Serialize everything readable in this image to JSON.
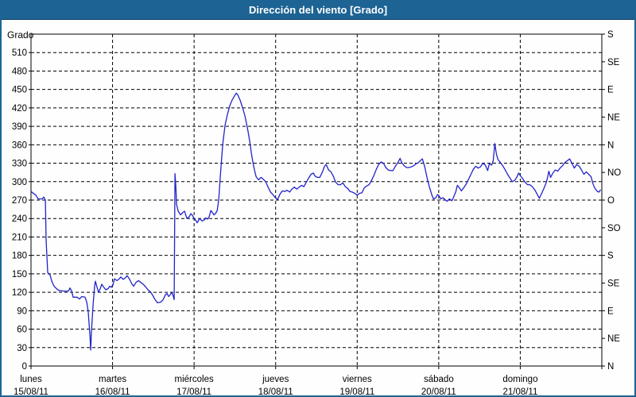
{
  "title": "Dirección del viento [Grado]",
  "colors": {
    "titlebar": "#1D6394",
    "page_border": "#1D6394",
    "line": "#2323CC",
    "grid": "#000000",
    "frame": "#000000",
    "text": "#000000",
    "title_text": "#FFFFFF",
    "background": "#FDFEFD"
  },
  "chart_data": {
    "type": "line",
    "title": "Dirección del viento [Grado]",
    "ylabel_left": "Grado",
    "ylim": [
      0,
      540
    ],
    "grid": true,
    "y_left_ticks": [
      0,
      30,
      60,
      90,
      120,
      150,
      180,
      210,
      240,
      270,
      300,
      330,
      360,
      390,
      420,
      450,
      480,
      510
    ],
    "y_right_ticks": [
      [
        "S",
        540
      ],
      [
        "SE",
        495
      ],
      [
        "E",
        450
      ],
      [
        "NE",
        405
      ],
      [
        "N",
        360
      ],
      [
        "NO",
        315
      ],
      [
        "O",
        270
      ],
      [
        "SO",
        225
      ],
      [
        "S",
        180
      ],
      [
        "SE",
        135
      ],
      [
        "E",
        90
      ],
      [
        "NE",
        45
      ],
      [
        "N",
        0
      ]
    ],
    "x_days": [
      {
        "name": "lunes",
        "date": "15/08/11"
      },
      {
        "name": "martes",
        "date": "16/08/11"
      },
      {
        "name": "miércoles",
        "date": "17/08/11"
      },
      {
        "name": "jueves",
        "date": "18/08/11"
      },
      {
        "name": "viernes",
        "date": "19/08/11"
      },
      {
        "name": "sábado",
        "date": "20/08/11"
      },
      {
        "name": "domingo",
        "date": "21/08/11"
      }
    ],
    "series": [
      {
        "name": "Dirección del viento",
        "points": [
          [
            0.0,
            284
          ],
          [
            0.059,
            278
          ],
          [
            0.088,
            272
          ],
          [
            0.137,
            272
          ],
          [
            0.156,
            275
          ],
          [
            0.176,
            270
          ],
          [
            0.185,
            205
          ],
          [
            0.205,
            152
          ],
          [
            0.234,
            148
          ],
          [
            0.254,
            138
          ],
          [
            0.283,
            130
          ],
          [
            0.312,
            126
          ],
          [
            0.341,
            123
          ],
          [
            0.4,
            122
          ],
          [
            0.459,
            122
          ],
          [
            0.478,
            127
          ],
          [
            0.498,
            122
          ],
          [
            0.517,
            112
          ],
          [
            0.566,
            112
          ],
          [
            0.595,
            109
          ],
          [
            0.624,
            113
          ],
          [
            0.663,
            112
          ],
          [
            0.683,
            104
          ],
          [
            0.702,
            88
          ],
          [
            0.722,
            50
          ],
          [
            0.732,
            26
          ],
          [
            0.741,
            55
          ],
          [
            0.761,
            100
          ],
          [
            0.78,
            130
          ],
          [
            0.79,
            138
          ],
          [
            0.81,
            128
          ],
          [
            0.829,
            120
          ],
          [
            0.849,
            126
          ],
          [
            0.868,
            133
          ],
          [
            0.888,
            129
          ],
          [
            0.917,
            124
          ],
          [
            0.946,
            126
          ],
          [
            0.966,
            130
          ],
          [
            0.985,
            128
          ],
          [
            1.005,
            132
          ],
          [
            1.024,
            142
          ],
          [
            1.054,
            139
          ],
          [
            1.083,
            142
          ],
          [
            1.102,
            145
          ],
          [
            1.132,
            141
          ],
          [
            1.161,
            144
          ],
          [
            1.18,
            147
          ],
          [
            1.21,
            141
          ],
          [
            1.239,
            133
          ],
          [
            1.259,
            130
          ],
          [
            1.288,
            136
          ],
          [
            1.317,
            139
          ],
          [
            1.346,
            136
          ],
          [
            1.376,
            133
          ],
          [
            1.405,
            129
          ],
          [
            1.434,
            124
          ],
          [
            1.463,
            121
          ],
          [
            1.493,
            115
          ],
          [
            1.522,
            108
          ],
          [
            1.551,
            103
          ],
          [
            1.59,
            104
          ],
          [
            1.62,
            108
          ],
          [
            1.649,
            116
          ],
          [
            1.668,
            118
          ],
          [
            1.688,
            113
          ],
          [
            1.707,
            116
          ],
          [
            1.727,
            120
          ],
          [
            1.746,
            113
          ],
          [
            1.756,
            108
          ],
          [
            1.766,
            313
          ],
          [
            1.776,
            292
          ],
          [
            1.785,
            263
          ],
          [
            1.805,
            252
          ],
          [
            1.834,
            246
          ],
          [
            1.863,
            250
          ],
          [
            1.883,
            252
          ],
          [
            1.912,
            240
          ],
          [
            1.941,
            243
          ],
          [
            1.961,
            248
          ],
          [
            1.98,
            245
          ],
          [
            2.0,
            240
          ],
          [
            2.02,
            237
          ],
          [
            2.039,
            233
          ],
          [
            2.068,
            240
          ],
          [
            2.098,
            236
          ],
          [
            2.127,
            238
          ],
          [
            2.146,
            241
          ],
          [
            2.166,
            239
          ],
          [
            2.185,
            243
          ],
          [
            2.205,
            253
          ],
          [
            2.224,
            250
          ],
          [
            2.244,
            246
          ],
          [
            2.263,
            248
          ],
          [
            2.283,
            253
          ],
          [
            2.302,
            270
          ],
          [
            2.322,
            310
          ],
          [
            2.351,
            360
          ],
          [
            2.38,
            392
          ],
          [
            2.41,
            410
          ],
          [
            2.439,
            424
          ],
          [
            2.468,
            433
          ],
          [
            2.498,
            440
          ],
          [
            2.517,
            444
          ],
          [
            2.537,
            441
          ],
          [
            2.566,
            432
          ],
          [
            2.595,
            420
          ],
          [
            2.624,
            407
          ],
          [
            2.644,
            394
          ],
          [
            2.663,
            381
          ],
          [
            2.683,
            365
          ],
          [
            2.702,
            347
          ],
          [
            2.722,
            331
          ],
          [
            2.741,
            319
          ],
          [
            2.761,
            308
          ],
          [
            2.79,
            303
          ],
          [
            2.82,
            307
          ],
          [
            2.849,
            304
          ],
          [
            2.878,
            300
          ],
          [
            2.907,
            291
          ],
          [
            2.937,
            283
          ],
          [
            2.966,
            279
          ],
          [
            2.995,
            274
          ],
          [
            3.024,
            271
          ],
          [
            3.054,
            280
          ],
          [
            3.083,
            285
          ],
          [
            3.112,
            284
          ],
          [
            3.141,
            286
          ],
          [
            3.171,
            283
          ],
          [
            3.2,
            288
          ],
          [
            3.229,
            291
          ],
          [
            3.259,
            288
          ],
          [
            3.288,
            291
          ],
          [
            3.317,
            294
          ],
          [
            3.346,
            292
          ],
          [
            3.376,
            299
          ],
          [
            3.405,
            306
          ],
          [
            3.434,
            312
          ],
          [
            3.463,
            314
          ],
          [
            3.483,
            309
          ],
          [
            3.512,
            307
          ],
          [
            3.541,
            307
          ],
          [
            3.571,
            315
          ],
          [
            3.6,
            325
          ],
          [
            3.62,
            328
          ],
          [
            3.649,
            319
          ],
          [
            3.678,
            316
          ],
          [
            3.707,
            309
          ],
          [
            3.737,
            299
          ],
          [
            3.766,
            295
          ],
          [
            3.795,
            295
          ],
          [
            3.824,
            298
          ],
          [
            3.854,
            292
          ],
          [
            3.883,
            289
          ],
          [
            3.912,
            284
          ],
          [
            3.941,
            283
          ],
          [
            3.971,
            281
          ],
          [
            4.0,
            278
          ],
          [
            4.029,
            281
          ],
          [
            4.059,
            282
          ],
          [
            4.088,
            290
          ],
          [
            4.117,
            293
          ],
          [
            4.146,
            295
          ],
          [
            4.176,
            302
          ],
          [
            4.205,
            310
          ],
          [
            4.234,
            320
          ],
          [
            4.263,
            328
          ],
          [
            4.293,
            332
          ],
          [
            4.322,
            330
          ],
          [
            4.351,
            323
          ],
          [
            4.38,
            319
          ],
          [
            4.41,
            318
          ],
          [
            4.439,
            318
          ],
          [
            4.468,
            325
          ],
          [
            4.498,
            331
          ],
          [
            4.527,
            338
          ],
          [
            4.546,
            331
          ],
          [
            4.576,
            326
          ],
          [
            4.605,
            323
          ],
          [
            4.634,
            323
          ],
          [
            4.663,
            324
          ],
          [
            4.693,
            326
          ],
          [
            4.722,
            329
          ],
          [
            4.751,
            331
          ],
          [
            4.78,
            335
          ],
          [
            4.8,
            337
          ],
          [
            4.829,
            324
          ],
          [
            4.859,
            305
          ],
          [
            4.888,
            290
          ],
          [
            4.917,
            278
          ],
          [
            4.937,
            272
          ],
          [
            4.966,
            274
          ],
          [
            4.985,
            279
          ],
          [
            5.005,
            277
          ],
          [
            5.024,
            272
          ],
          [
            5.054,
            274
          ],
          [
            5.083,
            270
          ],
          [
            5.102,
            268
          ],
          [
            5.132,
            272
          ],
          [
            5.161,
            269
          ],
          [
            5.18,
            274
          ],
          [
            5.21,
            284
          ],
          [
            5.229,
            294
          ],
          [
            5.259,
            289
          ],
          [
            5.278,
            285
          ],
          [
            5.307,
            290
          ],
          [
            5.337,
            296
          ],
          [
            5.366,
            304
          ],
          [
            5.395,
            312
          ],
          [
            5.424,
            320
          ],
          [
            5.454,
            325
          ],
          [
            5.483,
            322
          ],
          [
            5.512,
            324
          ],
          [
            5.541,
            330
          ],
          [
            5.571,
            327
          ],
          [
            5.6,
            318
          ],
          [
            5.62,
            329
          ],
          [
            5.649,
            327
          ],
          [
            5.668,
            334
          ],
          [
            5.688,
            362
          ],
          [
            5.707,
            345
          ],
          [
            5.727,
            336
          ],
          [
            5.756,
            331
          ],
          [
            5.785,
            326
          ],
          [
            5.815,
            319
          ],
          [
            5.844,
            312
          ],
          [
            5.873,
            306
          ],
          [
            5.902,
            300
          ],
          [
            5.932,
            302
          ],
          [
            5.961,
            308
          ],
          [
            5.98,
            314
          ],
          [
            6.0,
            310
          ],
          [
            6.029,
            305
          ],
          [
            6.059,
            299
          ],
          [
            6.088,
            295
          ],
          [
            6.117,
            295
          ],
          [
            6.146,
            292
          ],
          [
            6.176,
            287
          ],
          [
            6.205,
            280
          ],
          [
            6.234,
            273
          ],
          [
            6.263,
            281
          ],
          [
            6.293,
            290
          ],
          [
            6.322,
            300
          ],
          [
            6.351,
            317
          ],
          [
            6.371,
            307
          ],
          [
            6.4,
            314
          ],
          [
            6.429,
            319
          ],
          [
            6.459,
            317
          ],
          [
            6.488,
            322
          ],
          [
            6.517,
            326
          ],
          [
            6.546,
            331
          ],
          [
            6.576,
            334
          ],
          [
            6.605,
            337
          ],
          [
            6.634,
            330
          ],
          [
            6.663,
            322
          ],
          [
            6.693,
            328
          ],
          [
            6.722,
            325
          ],
          [
            6.751,
            319
          ],
          [
            6.78,
            312
          ],
          [
            6.81,
            316
          ],
          [
            6.839,
            312
          ],
          [
            6.868,
            308
          ],
          [
            6.888,
            298
          ],
          [
            6.907,
            291
          ],
          [
            6.927,
            287
          ],
          [
            6.946,
            284
          ],
          [
            6.966,
            283
          ],
          [
            6.985,
            287
          ]
        ]
      }
    ]
  }
}
